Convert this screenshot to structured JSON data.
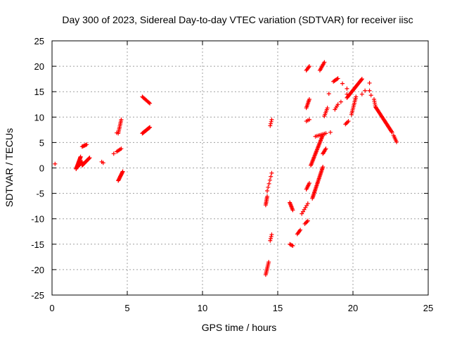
{
  "chart_data": {
    "type": "scatter",
    "title": "Day 300 of 2023, Sidereal Day-to-day VTEC variation (SDTVAR) for receiver iisc",
    "xlabel": "GPS time / hours",
    "ylabel": "SDTVAR / TECUs",
    "xlim": [
      0,
      25
    ],
    "ylim": [
      -25,
      25
    ],
    "xticks": [
      "0",
      "5",
      "10",
      "15",
      "20",
      "25"
    ],
    "yticks": [
      "25",
      "20",
      "15",
      "10",
      "5",
      "0",
      "-5",
      "-10",
      "-15",
      "-20",
      "-25"
    ],
    "grid": true,
    "marker": "plus",
    "color": "#ff0000",
    "segments": [
      {
        "x": [
          0.2
        ],
        "y": [
          0.8
        ]
      },
      {
        "x0": 1.6,
        "x1": 1.9,
        "y0": -0.2,
        "y1": 2.2,
        "n": 18
      },
      {
        "x0": 1.7,
        "x1": 2.0,
        "y0": 0.2,
        "y1": 1.2,
        "n": 10
      },
      {
        "x0": 2.0,
        "x1": 2.5,
        "y0": 0.5,
        "y1": 2.0,
        "n": 16
      },
      {
        "x0": 2.0,
        "x1": 2.3,
        "y0": 4.2,
        "y1": 4.6,
        "n": 6
      },
      {
        "x": [
          3.3,
          3.4
        ],
        "y": [
          1.2,
          1.0
        ]
      },
      {
        "x": [
          4.1,
          4.3
        ],
        "y": [
          2.8,
          6.9
        ]
      },
      {
        "x0": 4.4,
        "x1": 4.6,
        "y0": 6.8,
        "y1": 9.5,
        "n": 10
      },
      {
        "x0": 4.3,
        "x1": 4.6,
        "y0": 3.2,
        "y1": 3.8,
        "n": 5
      },
      {
        "x0": 4.4,
        "x1": 4.7,
        "y0": -2.5,
        "y1": -0.7,
        "n": 12
      },
      {
        "x0": 6.0,
        "x1": 6.5,
        "y0": 14.0,
        "y1": 12.7,
        "n": 10
      },
      {
        "x0": 6.0,
        "x1": 6.5,
        "y0": 6.8,
        "y1": 8.0,
        "n": 16
      },
      {
        "x0": 14.2,
        "x1": 14.4,
        "y0": -21.0,
        "y1": -18.5,
        "n": 10
      },
      {
        "x0": 14.2,
        "x1": 14.3,
        "y0": -7.3,
        "y1": -5.6,
        "n": 8
      },
      {
        "x0": 14.3,
        "x1": 14.6,
        "y0": -4.5,
        "y1": -1.0,
        "n": 6
      },
      {
        "x0": 14.5,
        "x1": 14.6,
        "y0": 8.3,
        "y1": 9.5,
        "n": 4
      },
      {
        "x0": 14.5,
        "x1": 14.6,
        "y0": -14.3,
        "y1": -13.1,
        "n": 4
      },
      {
        "x0": 15.8,
        "x1": 16.0,
        "y0": -6.8,
        "y1": -8.3,
        "n": 8
      },
      {
        "x0": 15.8,
        "x1": 16.0,
        "y0": -15.0,
        "y1": -15.3,
        "n": 4
      },
      {
        "x0": 16.3,
        "x1": 16.5,
        "y0": -13.0,
        "y1": -12.2,
        "n": 5
      },
      {
        "x0": 16.6,
        "x1": 17.0,
        "y0": -9.0,
        "y1": -7.0,
        "n": 6
      },
      {
        "x0": 16.8,
        "x1": 17.0,
        "y0": -11.0,
        "y1": -10.4,
        "n": 4
      },
      {
        "x0": 16.9,
        "x1": 17.1,
        "y0": -4.2,
        "y1": -3.0,
        "n": 6
      },
      {
        "x0": 16.9,
        "x1": 17.1,
        "y0": 11.8,
        "y1": 13.5,
        "n": 8
      },
      {
        "x0": 16.9,
        "x1": 17.1,
        "y0": 19.2,
        "y1": 20.0,
        "n": 5
      },
      {
        "x0": 16.9,
        "x1": 17.1,
        "y0": 9.2,
        "y1": 9.5,
        "n": 3
      },
      {
        "x0": 17.2,
        "x1": 18.0,
        "y0": 0.5,
        "y1": 6.5,
        "n": 28
      },
      {
        "x0": 17.3,
        "x1": 18.0,
        "y0": -6.0,
        "y1": 0.2,
        "n": 28
      },
      {
        "x0": 17.5,
        "x1": 18.2,
        "y0": 6.2,
        "y1": 6.8,
        "n": 8
      },
      {
        "x0": 17.8,
        "x1": 18.1,
        "y0": 19.2,
        "y1": 20.8,
        "n": 8
      },
      {
        "x0": 18.0,
        "x1": 18.2,
        "y0": 2.8,
        "y1": 3.8,
        "n": 6
      },
      {
        "x0": 18.1,
        "x1": 18.3,
        "y0": 10.2,
        "y1": 11.8,
        "n": 6
      },
      {
        "x": [
          18.4,
          18.5
        ],
        "y": [
          14.6,
          7.0
        ]
      },
      {
        "x0": 18.7,
        "x1": 19.0,
        "y0": 17.0,
        "y1": 17.6,
        "n": 6
      },
      {
        "x0": 18.8,
        "x1": 19.0,
        "y0": 11.5,
        "y1": 12.5,
        "n": 4
      },
      {
        "x": [
          19.3,
          19.2
        ],
        "y": [
          16.6,
          13.0
        ]
      },
      {
        "x0": 19.5,
        "x1": 19.7,
        "y0": 8.6,
        "y1": 9.2,
        "n": 4
      },
      {
        "x0": 19.6,
        "x1": 20.6,
        "y0": 13.8,
        "y1": 17.5,
        "n": 26
      },
      {
        "x0": 19.9,
        "x1": 20.2,
        "y0": 10.5,
        "y1": 14.0,
        "n": 12
      },
      {
        "x": [
          19.6,
          19.6,
          20.6,
          20.8
        ],
        "y": [
          15.6,
          14.5,
          14.5,
          15.2
        ]
      },
      {
        "x": [
          21.1,
          21.1,
          21.2
        ],
        "y": [
          16.7,
          15.2,
          14.3
        ]
      },
      {
        "x0": 21.4,
        "x1": 21.5,
        "y0": 13.5,
        "y1": 12.0,
        "n": 5
      },
      {
        "x0": 21.5,
        "x1": 22.6,
        "y0": 12.0,
        "y1": 7.0,
        "n": 30
      },
      {
        "x0": 22.7,
        "x1": 22.9,
        "y0": 6.4,
        "y1": 5.1,
        "n": 6
      }
    ]
  }
}
